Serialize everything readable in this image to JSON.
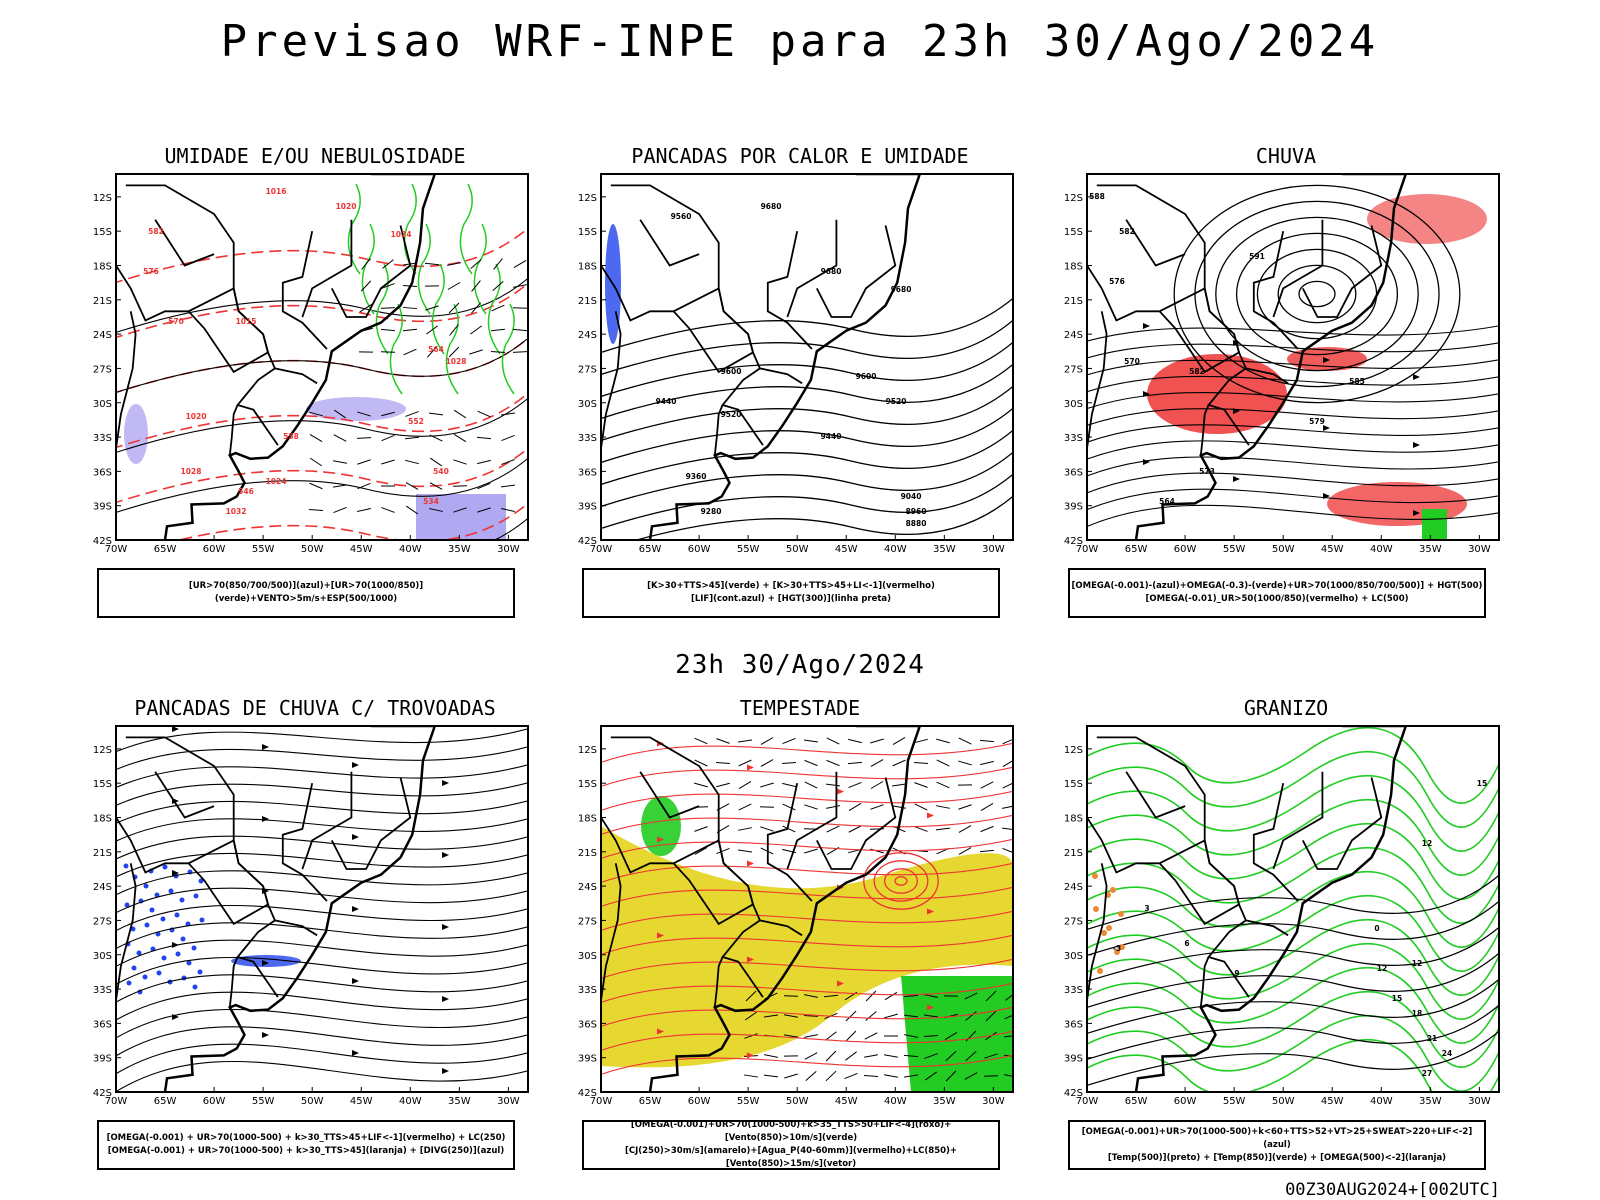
{
  "header": {
    "title": "Previsao WRF-INPE  para 23h 30/Ago/2024"
  },
  "middle_title": "23h 30/Ago/2024",
  "footer": "00Z30AUG2024+[002UTC]",
  "axes": {
    "lat_labels": [
      "12S",
      "15S",
      "18S",
      "21S",
      "24S",
      "27S",
      "30S",
      "33S",
      "36S",
      "39S",
      "42S"
    ],
    "lon_labels": [
      "70W",
      "65W",
      "60W",
      "55W",
      "50W",
      "45W",
      "40W",
      "35W",
      "30W"
    ]
  },
  "colors": {
    "red": "#ee3333",
    "green": "#22cc22",
    "blue": "#2244ee",
    "yellow": "#e6d830",
    "purple": "#b0a8f0",
    "orange": "#ee8833"
  },
  "panels": [
    {
      "title": "UMIDADE E/OU NEBULOSIDADE",
      "legend": [
        "[UR>70(850/700/500)](azul)+[UR>70(1000/850)](verde)+VENTO>5m/s+ESP(500/1000)"
      ],
      "labels": [
        "1016",
        "1020",
        "1024",
        "1028",
        "1020",
        "1024",
        "1028",
        "1032",
        "576",
        "570",
        "564",
        "558",
        "552",
        "546",
        "540",
        "534",
        "582",
        "1015"
      ]
    },
    {
      "title": "PANCADAS POR CALOR E UMIDADE",
      "legend": [
        "[K>30+TTS>45](verde) + [K>30+TTS>45+LI<-1](vermelho)",
        "[LIF](cont.azul) + [HGT(300)](linha preta)"
      ],
      "labels": [
        "9680",
        "9680",
        "9600",
        "9520",
        "9440",
        "9360",
        "9280",
        "9600",
        "9520",
        "9440",
        "9040",
        "8960",
        "8880",
        "9680",
        "9560"
      ]
    },
    {
      "title": "CHUVA",
      "legend": [
        "[OMEGA(-0.001)-(azul)+OMEGA(-0.3)-(verde)+UR>70(1000/850/700/500)] + HGT(500)",
        "[OMEGA(-0.01)_UR>50(1000/850)(vermelho) + LC(500)"
      ],
      "labels": [
        "588",
        "582",
        "576",
        "570",
        "564",
        "582",
        "585",
        "579",
        "573",
        "591"
      ]
    },
    {
      "title": "PANCADAS DE CHUVA C/ TROVOADAS",
      "legend": [
        "[OMEGA(-0.001) + UR>70(1000-500) + k>30_TTS>45+LIF<-1](vermelho) + LC(250)",
        "[OMEGA(-0.001) + UR>70(1000-500) + k>30_TTS>45](laranja) + [DIVG(250)](azul)"
      ],
      "labels": []
    },
    {
      "title": "TEMPESTADE",
      "legend": [
        "[OMEGA(-0.001)+UR>70(1000-500)+k>35_TTS>50+LIF<-4](roxo)+[Vento(850)>10m/s](verde)",
        "[CJ(250)>30m/s](amarelo)+[Agua_P(40-60mm)](vermelho)+LC(850)+[Vento(850)>15m/s](vetor)"
      ],
      "labels": []
    },
    {
      "title": "GRANIZO",
      "legend": [
        "[OMEGA(-0.001)+UR>70(1000-500)+k<60+TTS>52+VT>25+SWEAT>220+LIF<-2](azul)",
        "[Temp(500)](preto) + [Temp(850)](verde) + [OMEGA(500)<-2](laranja)"
      ],
      "labels": [
        "12",
        "12",
        "15",
        "18",
        "21",
        "24",
        "27",
        "-3",
        "0",
        "3",
        "6",
        "9",
        "12",
        "15"
      ]
    }
  ]
}
